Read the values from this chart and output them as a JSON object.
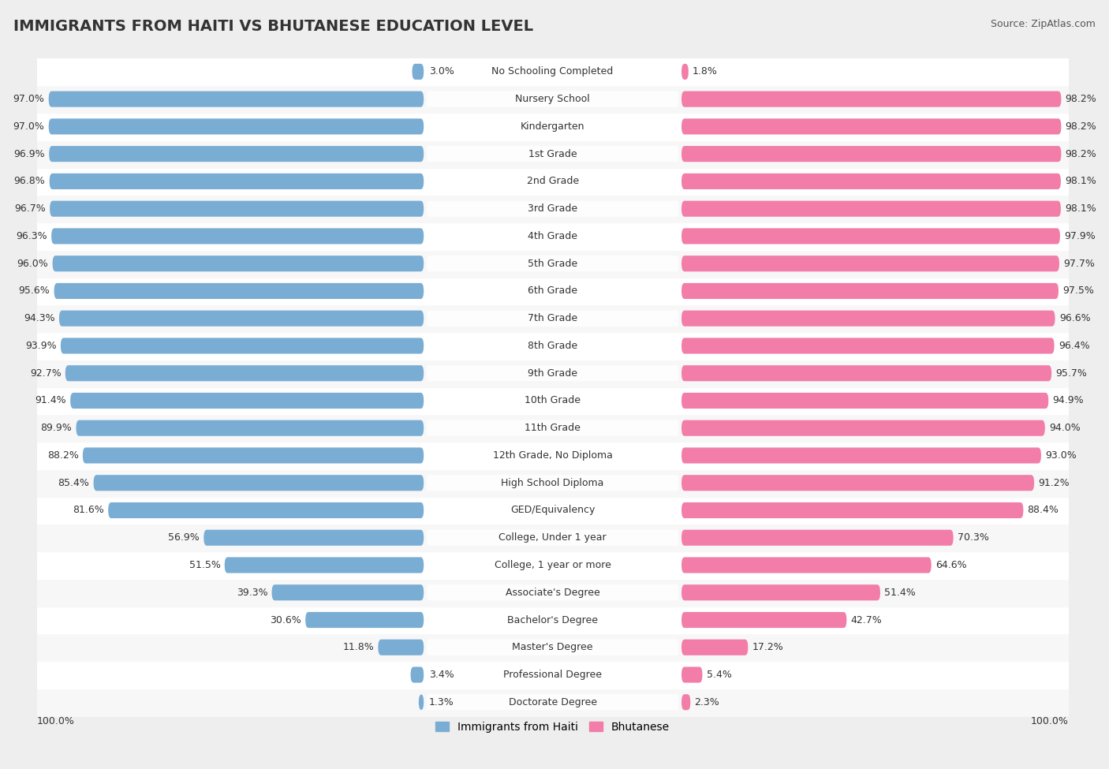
{
  "title": "IMMIGRANTS FROM HAITI VS BHUTANESE EDUCATION LEVEL",
  "source": "Source: ZipAtlas.com",
  "categories": [
    "No Schooling Completed",
    "Nursery School",
    "Kindergarten",
    "1st Grade",
    "2nd Grade",
    "3rd Grade",
    "4th Grade",
    "5th Grade",
    "6th Grade",
    "7th Grade",
    "8th Grade",
    "9th Grade",
    "10th Grade",
    "11th Grade",
    "12th Grade, No Diploma",
    "High School Diploma",
    "GED/Equivalency",
    "College, Under 1 year",
    "College, 1 year or more",
    "Associate's Degree",
    "Bachelor's Degree",
    "Master's Degree",
    "Professional Degree",
    "Doctorate Degree"
  ],
  "haiti_values": [
    3.0,
    97.0,
    97.0,
    96.9,
    96.8,
    96.7,
    96.3,
    96.0,
    95.6,
    94.3,
    93.9,
    92.7,
    91.4,
    89.9,
    88.2,
    85.4,
    81.6,
    56.9,
    51.5,
    39.3,
    30.6,
    11.8,
    3.4,
    1.3
  ],
  "bhutan_values": [
    1.8,
    98.2,
    98.2,
    98.2,
    98.1,
    98.1,
    97.9,
    97.7,
    97.5,
    96.6,
    96.4,
    95.7,
    94.9,
    94.0,
    93.0,
    91.2,
    88.4,
    70.3,
    64.6,
    51.4,
    42.7,
    17.2,
    5.4,
    2.3
  ],
  "haiti_color": "#7aadd4",
  "bhutan_color": "#f27da8",
  "background_color": "#eeeeee",
  "row_color_odd": "#f7f7f7",
  "row_color_even": "#ffffff",
  "bar_height": 0.58,
  "label_fontsize": 9.0,
  "value_fontsize": 9.0,
  "title_fontsize": 14,
  "source_fontsize": 9,
  "legend_fontsize": 10
}
